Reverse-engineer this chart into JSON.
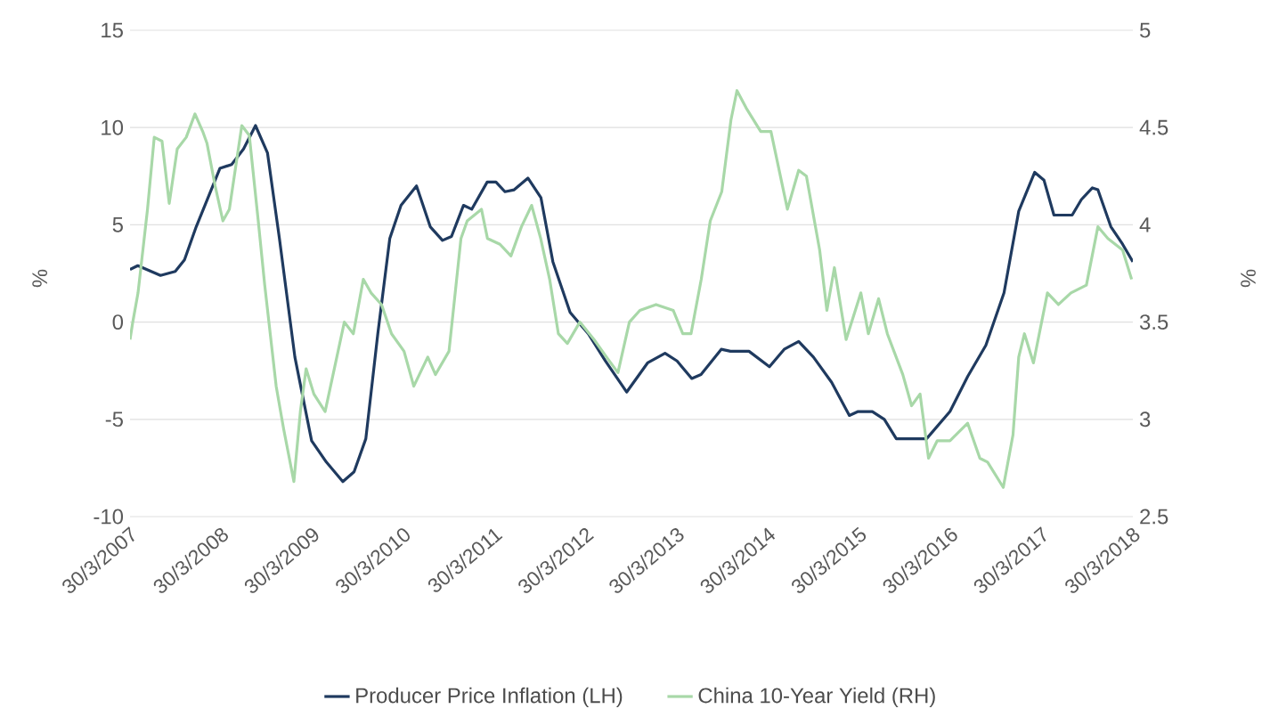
{
  "chart_data": {
    "type": "line",
    "ylabel": "%",
    "y2label": "%",
    "xlim": [
      "2007-03-30",
      "2018-03-30"
    ],
    "xticks": [
      {
        "value": "2007-03-30",
        "label": "30/3/2007"
      },
      {
        "value": "2008-03-30",
        "label": "30/3/2008"
      },
      {
        "value": "2009-03-30",
        "label": "30/3/2009"
      },
      {
        "value": "2010-03-30",
        "label": "30/3/2010"
      },
      {
        "value": "2011-03-30",
        "label": "30/3/2011"
      },
      {
        "value": "2012-03-30",
        "label": "30/3/2012"
      },
      {
        "value": "2013-03-30",
        "label": "30/3/2013"
      },
      {
        "value": "2014-03-30",
        "label": "30/3/2014"
      },
      {
        "value": "2015-03-30",
        "label": "30/3/2015"
      },
      {
        "value": "2016-03-30",
        "label": "30/3/2016"
      },
      {
        "value": "2017-03-30",
        "label": "30/3/2017"
      },
      {
        "value": "2018-03-30",
        "label": "30/3/2018"
      }
    ],
    "ylim": [
      -10,
      15
    ],
    "yticks": [
      -10,
      -5,
      0,
      5,
      10,
      15
    ],
    "y2lim": [
      2.5,
      5
    ],
    "y2ticks": [
      2.5,
      3,
      3.5,
      4,
      4.5,
      5
    ],
    "grid": "y",
    "legend": "bottom",
    "marker": "none",
    "line_style": "solid",
    "series": [
      {
        "name": "Producer Price Inflation (LH)",
        "color": "#1f3a5f",
        "x": [
          "2007-03-30",
          "2007-04-30",
          "2007-07-30",
          "2007-09-27",
          "2007-11-03",
          "2007-12-20",
          "2008-03-24",
          "2008-05-10",
          "2008-06-27",
          "2008-08-14",
          "2008-10-01",
          "2008-11-18",
          "2009-01-19",
          "2009-03-27",
          "2009-05-25",
          "2009-07-30",
          "2009-09-13",
          "2009-10-30",
          "2009-12-17",
          "2010-02-03",
          "2010-03-20",
          "2010-05-21",
          "2010-07-15",
          "2010-09-02",
          "2010-10-08",
          "2010-11-25",
          "2010-12-28",
          "2011-02-28",
          "2011-04-04",
          "2011-05-10",
          "2011-06-16",
          "2011-08-10",
          "2011-10-01",
          "2011-11-18",
          "2012-01-26",
          "2012-04-08",
          "2012-06-16",
          "2012-09-09",
          "2012-12-02",
          "2013-02-10",
          "2013-03-30",
          "2013-05-28",
          "2013-07-04",
          "2013-09-23",
          "2013-10-30",
          "2014-01-12",
          "2014-04-04",
          "2014-06-02",
          "2014-07-30",
          "2014-09-27",
          "2014-12-09",
          "2015-02-18",
          "2015-03-25",
          "2015-05-21",
          "2015-07-08",
          "2015-08-25",
          "2015-12-24",
          "2016-03-27",
          "2016-06-06",
          "2016-08-18",
          "2016-10-30",
          "2016-12-28",
          "2017-03-02",
          "2017-04-08",
          "2017-05-18",
          "2017-07-30",
          "2017-09-05",
          "2017-10-19",
          "2017-11-10",
          "2018-01-01",
          "2018-02-17",
          "2018-03-30"
        ],
        "values": [
          2.7,
          2.9,
          2.4,
          2.6,
          3.2,
          4.9,
          7.9,
          8.1,
          8.9,
          10.1,
          8.7,
          4.3,
          -1.8,
          -6.1,
          -7.2,
          -8.2,
          -7.7,
          -6.0,
          -0.6,
          4.3,
          6.0,
          7.0,
          4.9,
          4.2,
          4.4,
          6.0,
          5.8,
          7.2,
          7.2,
          6.7,
          6.8,
          7.4,
          6.4,
          3.1,
          0.5,
          -0.6,
          -2.0,
          -3.6,
          -2.1,
          -1.6,
          -2.0,
          -2.9,
          -2.7,
          -1.4,
          -1.5,
          -1.5,
          -2.3,
          -1.4,
          -1.0,
          -1.8,
          -3.1,
          -4.8,
          -4.6,
          -4.6,
          -5.0,
          -6.0,
          -6.0,
          -4.6,
          -2.8,
          -1.2,
          1.5,
          5.7,
          7.7,
          7.3,
          5.5,
          5.5,
          6.3,
          6.9,
          6.8,
          4.9,
          4.0,
          3.1
        ]
      },
      {
        "name": "China 10-Year Yield (RH)",
        "color": "#a8d8a8",
        "axis": "y2",
        "x": [
          "2007-03-30",
          "2007-04-10",
          "2007-05-01",
          "2007-06-08",
          "2007-07-05",
          "2007-08-05",
          "2007-09-03",
          "2007-10-05",
          "2007-11-10",
          "2007-12-15",
          "2008-01-15",
          "2008-02-01",
          "2008-03-05",
          "2008-04-05",
          "2008-05-01",
          "2008-06-20",
          "2008-07-20",
          "2008-08-25",
          "2008-09-20",
          "2008-11-05",
          "2008-12-05",
          "2009-01-15",
          "2009-02-10",
          "2009-03-05",
          "2009-04-05",
          "2009-05-20",
          "2009-08-05",
          "2009-09-10",
          "2009-10-20",
          "2009-11-20",
          "2010-01-01",
          "2010-02-10",
          "2010-04-01",
          "2010-05-10",
          "2010-07-05",
          "2010-08-05",
          "2010-09-28",
          "2010-11-15",
          "2010-12-10",
          "2011-02-05",
          "2011-03-01",
          "2011-04-20",
          "2011-06-03",
          "2011-07-15",
          "2011-08-25",
          "2011-09-30",
          "2011-11-05",
          "2011-12-10",
          "2012-01-15",
          "2012-03-05",
          "2012-05-01",
          "2012-06-20",
          "2012-08-05",
          "2012-09-20",
          "2012-11-01",
          "2013-01-05",
          "2013-03-15",
          "2013-04-22",
          "2013-05-25",
          "2013-07-05",
          "2013-08-10",
          "2013-09-25",
          "2013-11-01",
          "2013-11-25",
          "2014-01-01",
          "2014-02-28",
          "2014-04-10",
          "2014-06-15",
          "2014-07-30",
          "2014-08-30",
          "2014-10-22",
          "2014-11-20",
          "2014-12-20",
          "2015-02-05",
          "2015-04-05",
          "2015-05-05",
          "2015-06-15",
          "2015-07-20",
          "2015-09-20",
          "2015-10-25",
          "2015-11-28",
          "2016-01-01",
          "2016-02-05",
          "2016-03-27",
          "2016-06-06",
          "2016-07-25",
          "2016-08-25",
          "2016-10-27",
          "2016-12-05",
          "2016-12-28",
          "2017-01-20",
          "2017-02-25",
          "2017-04-22",
          "2017-06-05",
          "2017-07-25",
          "2017-09-25",
          "2017-11-10",
          "2017-12-20",
          "2018-02-17",
          "2018-03-25"
        ],
        "values": [
          3.41,
          3.5,
          3.65,
          4.08,
          4.45,
          4.43,
          4.11,
          4.39,
          4.45,
          4.57,
          4.48,
          4.42,
          4.2,
          4.02,
          4.08,
          4.51,
          4.46,
          4.02,
          3.69,
          3.17,
          2.95,
          2.68,
          3.04,
          3.26,
          3.13,
          3.04,
          3.5,
          3.44,
          3.72,
          3.65,
          3.59,
          3.44,
          3.35,
          3.17,
          3.32,
          3.23,
          3.35,
          3.93,
          4.02,
          4.08,
          3.93,
          3.9,
          3.84,
          3.99,
          4.1,
          3.93,
          3.72,
          3.44,
          3.39,
          3.5,
          3.41,
          3.32,
          3.24,
          3.5,
          3.56,
          3.59,
          3.56,
          3.44,
          3.44,
          3.72,
          4.02,
          4.17,
          4.54,
          4.69,
          4.6,
          4.48,
          4.48,
          4.08,
          4.28,
          4.25,
          3.87,
          3.56,
          3.78,
          3.41,
          3.65,
          3.44,
          3.62,
          3.44,
          3.23,
          3.07,
          3.13,
          2.8,
          2.89,
          2.89,
          2.98,
          2.8,
          2.78,
          2.65,
          2.92,
          3.32,
          3.44,
          3.29,
          3.65,
          3.59,
          3.65,
          3.69,
          3.99,
          3.93,
          3.87,
          3.72
        ]
      }
    ]
  }
}
